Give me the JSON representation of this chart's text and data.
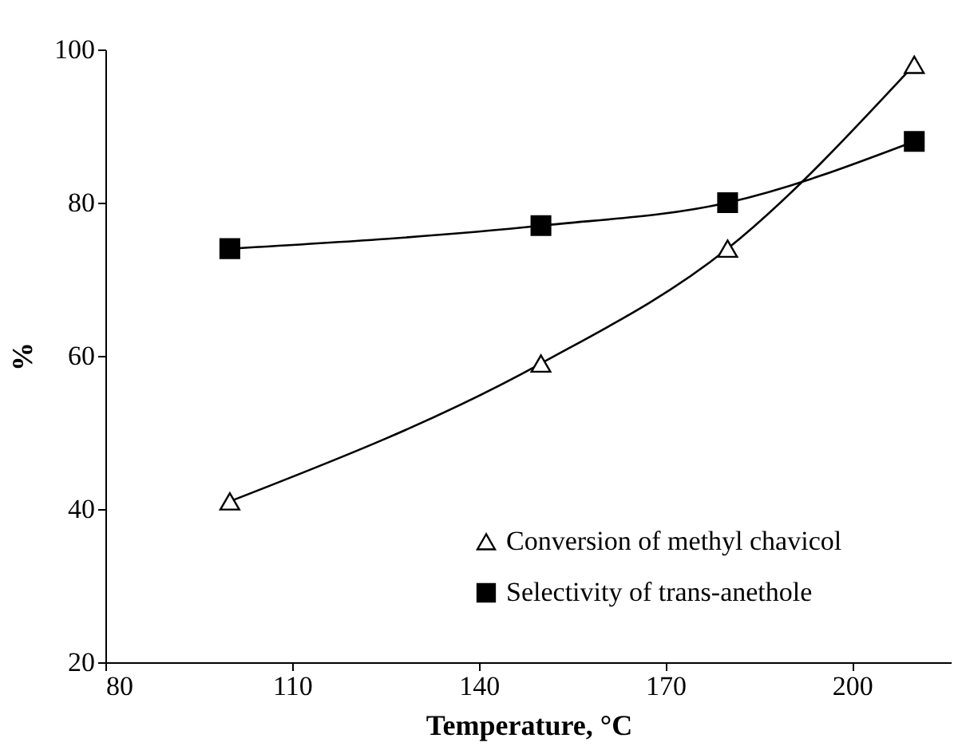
{
  "chart_data": {
    "type": "line",
    "xlabel": "Temperature, °C",
    "ylabel": "%",
    "x": [
      100,
      150,
      180,
      210
    ],
    "series": [
      {
        "name": "Conversion of methyl chavicol",
        "color": "#000000",
        "marker": "triangle",
        "values": [
          41,
          59,
          74,
          98
        ]
      },
      {
        "name": "Selectivity of trans-anethole",
        "color": "#000000",
        "marker": "square",
        "values": [
          74,
          77,
          80,
          88
        ]
      }
    ],
    "xlim": [
      80,
      216
    ],
    "xticks": [
      80,
      110,
      140,
      170,
      200
    ],
    "ylim": [
      20,
      100
    ],
    "yticks": [
      20,
      40,
      60,
      80,
      100
    ],
    "grid": false,
    "legend": "bottom"
  }
}
